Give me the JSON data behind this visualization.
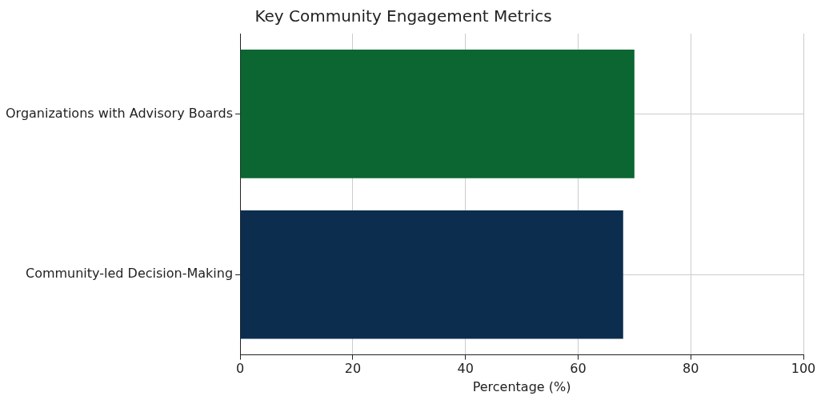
{
  "chart_data": {
    "type": "bar",
    "orientation": "horizontal",
    "title": "Key Community Engagement Metrics",
    "xlabel": "Percentage (%)",
    "categories": [
      "Organizations with Advisory Boards",
      "Community-led Decision-Making"
    ],
    "values": [
      70,
      68
    ],
    "colors": [
      "#0b6632",
      "#0c2d4d"
    ],
    "xlim": [
      0,
      100
    ],
    "xticks": [
      0,
      20,
      40,
      60,
      80,
      100
    ],
    "grid": true,
    "legend": false
  }
}
